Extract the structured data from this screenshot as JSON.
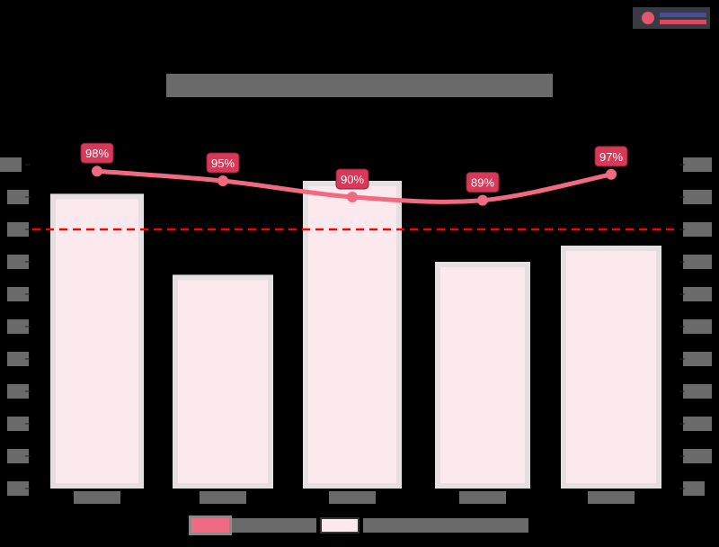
{
  "logo": {
    "name": "brand-logo"
  },
  "chart_data": {
    "type": "bar+line",
    "title": "[redacted]",
    "categories": [
      "[redacted]",
      "[redacted]",
      "[redacted]",
      "[redacted]",
      "[redacted]"
    ],
    "series": [
      {
        "name": "[redacted line series]",
        "type": "line",
        "axis": "left",
        "color": "#f06a82",
        "values": [
          98,
          95,
          90,
          89,
          97
        ],
        "labels": [
          "98%",
          "95%",
          "90%",
          "89%",
          "97%"
        ]
      },
      {
        "name": "[redacted bar series]",
        "type": "bar",
        "axis": "right",
        "color": "#fbe9ee",
        "values_normalized_pct_of_axis": [
          91,
          66,
          95,
          70,
          75
        ]
      }
    ],
    "reference_line": {
      "axis": "left",
      "value": 80,
      "color": "#ff0000",
      "style": "dashed"
    },
    "left_axis": {
      "ylim": [
        0,
        100
      ],
      "ticks": 11,
      "tick_labels": "[redacted]"
    },
    "right_axis": {
      "ticks": 11,
      "tick_labels": "[redacted]"
    },
    "legend_position": "bottom",
    "grid": false
  }
}
